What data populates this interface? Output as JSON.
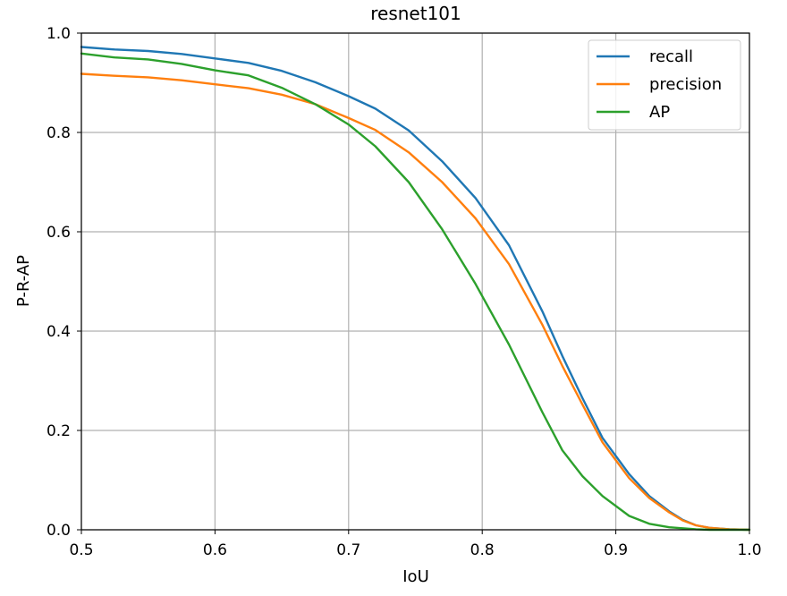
{
  "chart_data": {
    "type": "line",
    "title": "resnet101",
    "xlabel": "IoU",
    "ylabel": "P-R-AP",
    "xlim": [
      0.5,
      1.0
    ],
    "ylim": [
      0.0,
      1.0
    ],
    "grid": true,
    "legend_position": "top-right",
    "x_ticks": [
      "0.5",
      "0.6",
      "0.7",
      "0.8",
      "0.9",
      "1.0"
    ],
    "y_ticks": [
      "0.0",
      "0.2",
      "0.4",
      "0.6",
      "0.8",
      "1.0"
    ],
    "x": [
      0.5,
      0.525,
      0.55,
      0.575,
      0.6,
      0.625,
      0.65,
      0.675,
      0.7,
      0.72,
      0.745,
      0.77,
      0.795,
      0.82,
      0.845,
      0.86,
      0.875,
      0.89,
      0.91,
      0.925,
      0.94,
      0.95,
      0.96,
      0.97,
      0.985,
      1.0
    ],
    "series": [
      {
        "name": "recall",
        "color": "#1f77b4",
        "values": [
          0.972,
          0.967,
          0.964,
          0.958,
          0.949,
          0.94,
          0.924,
          0.901,
          0.873,
          0.848,
          0.804,
          0.742,
          0.668,
          0.573,
          0.44,
          0.35,
          0.265,
          0.185,
          0.112,
          0.068,
          0.037,
          0.02,
          0.009,
          0.004,
          0.001,
          0.0
        ]
      },
      {
        "name": "precision",
        "color": "#ff7f0e",
        "values": [
          0.918,
          0.914,
          0.911,
          0.905,
          0.897,
          0.889,
          0.876,
          0.857,
          0.829,
          0.805,
          0.76,
          0.7,
          0.627,
          0.535,
          0.413,
          0.33,
          0.252,
          0.176,
          0.104,
          0.064,
          0.035,
          0.019,
          0.009,
          0.004,
          0.001,
          0.0
        ]
      },
      {
        "name": "AP",
        "color": "#2ca02c",
        "values": [
          0.959,
          0.951,
          0.947,
          0.938,
          0.925,
          0.915,
          0.89,
          0.857,
          0.816,
          0.772,
          0.7,
          0.605,
          0.495,
          0.373,
          0.237,
          0.16,
          0.108,
          0.068,
          0.028,
          0.012,
          0.005,
          0.003,
          0.001,
          0.0,
          0.0,
          0.0
        ]
      }
    ]
  }
}
